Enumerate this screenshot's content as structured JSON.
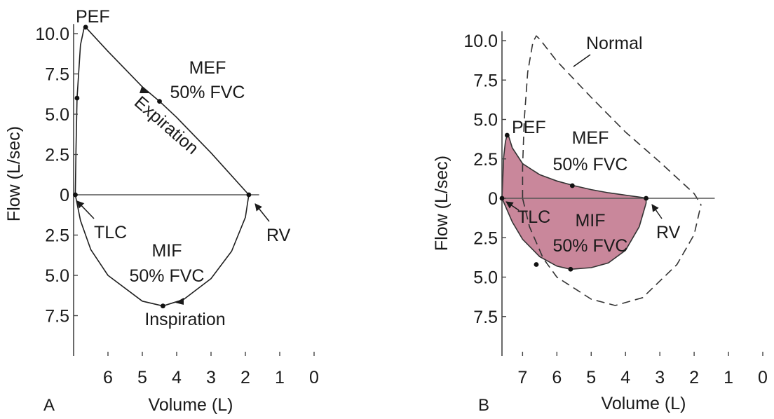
{
  "chart_data": [
    {
      "type": "line",
      "panel_label": "A",
      "xlabel": "Volume (L)",
      "ylabel": "Flow (L/sec)",
      "x_reversed": true,
      "xlim": [
        7,
        0
      ],
      "ylim": [
        -10,
        10.6
      ],
      "x_ticks": [
        6,
        5,
        4,
        3,
        2,
        1,
        0
      ],
      "y_ticks": [
        {
          "value": 10.0,
          "label": "10.0"
        },
        {
          "value": 7.5,
          "label": "7.5"
        },
        {
          "value": 5.0,
          "label": "5.0"
        },
        {
          "value": 2.5,
          "label": "2.5"
        },
        {
          "value": 0,
          "label": "0"
        },
        {
          "value": -2.5,
          "label": "2.5"
        },
        {
          "value": -5.0,
          "label": "5.0"
        },
        {
          "value": -7.5,
          "label": "7.5"
        }
      ],
      "baseline_x_range": [
        7,
        1.6
      ],
      "series": [
        {
          "style": "solid",
          "x": [
            6.95,
            6.93,
            6.9,
            6.8,
            6.7,
            6.65,
            6.0,
            5.0,
            4.5,
            4.0,
            3.0,
            1.9
          ],
          "y": [
            0.0,
            2.8,
            6.0,
            9.3,
            10.3,
            10.4,
            8.9,
            6.7,
            5.8,
            4.8,
            2.6,
            0.0
          ]
        },
        {
          "style": "solid",
          "x": [
            6.95,
            6.8,
            6.5,
            6.0,
            5.0,
            4.4,
            3.8,
            3.0,
            2.4,
            2.0,
            1.9
          ],
          "y": [
            0.0,
            -1.6,
            -3.4,
            -5.0,
            -6.6,
            -6.9,
            -6.5,
            -5.2,
            -3.5,
            -1.4,
            0.0
          ]
        }
      ],
      "points": [
        {
          "x": 6.9,
          "y": 6.0
        },
        {
          "x": 6.65,
          "y": 10.4
        },
        {
          "x": 4.5,
          "y": 5.8
        },
        {
          "x": 6.95,
          "y": 0.0
        },
        {
          "x": 1.9,
          "y": 0.0
        },
        {
          "x": 4.4,
          "y": -6.9
        }
      ],
      "labels": {
        "pef": "PEF",
        "mef_line1": "MEF",
        "mef_line2": "50% FVC",
        "expiration": "Expiration",
        "tlc": "TLC",
        "rv": "RV",
        "mif_line1": "MIF",
        "mif_line2": "50% FVC",
        "inspiration": "Inspiration"
      }
    },
    {
      "type": "line",
      "panel_label": "B",
      "xlabel": "Volume (L)",
      "ylabel": "Flow (L/sec)",
      "x_reversed": true,
      "xlim": [
        7.6,
        0
      ],
      "ylim": [
        -10,
        10.6
      ],
      "x_ticks": [
        7,
        6,
        5,
        4,
        3,
        2,
        1,
        0
      ],
      "y_ticks": [
        {
          "value": 10.0,
          "label": "10.0"
        },
        {
          "value": 7.5,
          "label": "7.5"
        },
        {
          "value": 5.0,
          "label": "5.0"
        },
        {
          "value": 2.5,
          "label": "2.5"
        },
        {
          "value": 0,
          "label": "0"
        },
        {
          "value": -2.5,
          "label": "2.5"
        },
        {
          "value": -5.0,
          "label": "5.0"
        },
        {
          "value": -7.5,
          "label": "7.5"
        }
      ],
      "baseline_x_range": [
        7.6,
        1.4
      ],
      "series": [
        {
          "name": "Normal",
          "style": "dashed",
          "x": [
            7.0,
            7.0,
            6.95,
            6.85,
            6.7,
            6.6,
            6.5,
            6.0,
            5.0,
            4.0,
            3.0,
            2.4,
            2.0,
            1.8
          ],
          "y": [
            0.0,
            2.0,
            5.0,
            8.0,
            9.9,
            10.3,
            10.1,
            8.7,
            6.4,
            4.2,
            2.3,
            1.1,
            0.3,
            -0.4
          ]
        },
        {
          "name": "Normal",
          "style": "dashed",
          "x": [
            7.0,
            6.8,
            6.4,
            6.0,
            5.0,
            4.3,
            3.5,
            2.5,
            2.0,
            1.8
          ],
          "y": [
            0.0,
            -1.8,
            -3.8,
            -5.0,
            -6.4,
            -6.8,
            -6.3,
            -4.2,
            -2.3,
            -0.4
          ]
        }
      ],
      "region": {
        "fill": "#c9879b",
        "x": [
          7.6,
          7.55,
          7.5,
          7.45,
          7.4,
          7.3,
          7.0,
          6.5,
          6.0,
          5.5,
          5.0,
          4.5,
          4.0,
          3.5,
          3.4,
          3.4,
          3.6,
          4.0,
          4.5,
          5.0,
          5.6,
          6.0,
          6.5,
          7.0,
          7.3,
          7.6
        ],
        "y": [
          0.0,
          2.6,
          3.6,
          4.0,
          3.9,
          3.2,
          2.2,
          1.5,
          1.1,
          0.8,
          0.55,
          0.35,
          0.2,
          0.05,
          0.0,
          -0.3,
          -1.8,
          -3.3,
          -4.1,
          -4.4,
          -4.5,
          -4.3,
          -3.7,
          -2.6,
          -1.5,
          0.0
        ]
      },
      "points": [
        {
          "x": 7.45,
          "y": 4.0
        },
        {
          "x": 5.55,
          "y": 0.8
        },
        {
          "x": 7.6,
          "y": 0.0
        },
        {
          "x": 3.4,
          "y": 0.0
        },
        {
          "x": 5.6,
          "y": -4.5
        },
        {
          "x": 6.6,
          "y": -4.2
        }
      ],
      "labels": {
        "normal": "Normal",
        "pef": "PEF",
        "mef_line1": "MEF",
        "mef_line2": "50% FVC",
        "tlc": "TLC",
        "rv": "RV",
        "mif_line1": "MIF",
        "mif_line2": "50% FVC"
      }
    }
  ]
}
